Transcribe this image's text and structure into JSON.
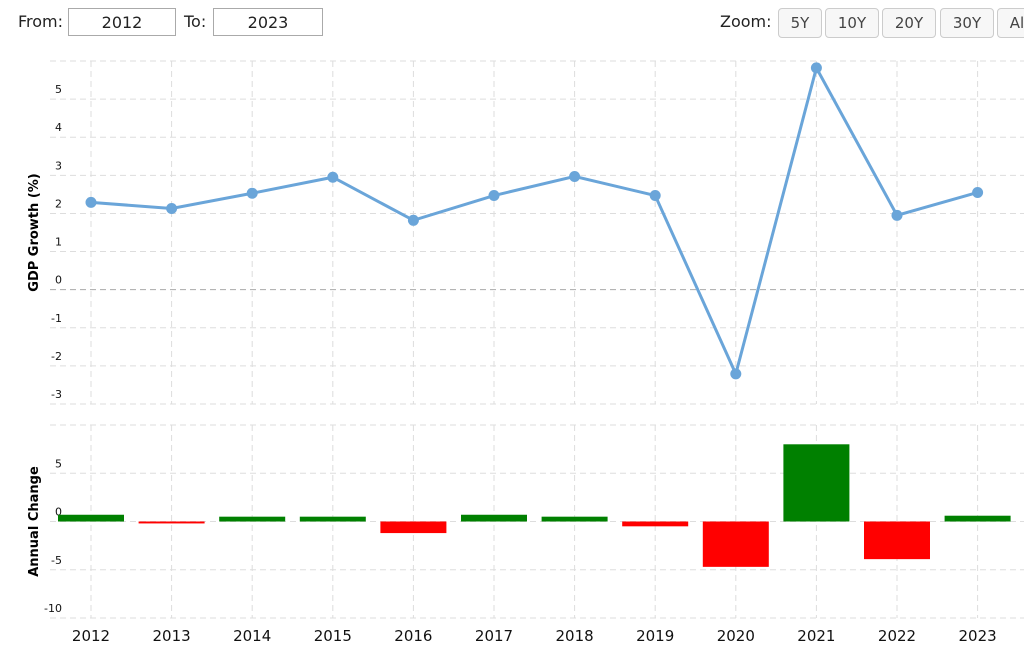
{
  "controls": {
    "from_label": "From:",
    "from_value": "2012",
    "to_label": "To:",
    "to_value": "2023",
    "zoom_label": "Zoom:",
    "zoom_buttons": [
      "5Y",
      "10Y",
      "20Y",
      "30Y",
      "Al"
    ]
  },
  "chart_data": [
    {
      "type": "line",
      "y_label": "GDP Growth (%)",
      "color": "#6aa5d9",
      "values": [
        2.29,
        2.13,
        2.53,
        2.95,
        1.82,
        2.47,
        2.97,
        2.47,
        -2.21,
        5.82,
        1.95,
        2.55
      ],
      "ylim": [
        -3,
        6
      ],
      "yticks": [
        -3,
        -2,
        -1,
        0,
        1,
        2,
        3,
        4,
        5
      ],
      "grid": true
    },
    {
      "type": "bar",
      "y_label": "Annual Change",
      "categories": [
        "2012",
        "2013",
        "2014",
        "2015",
        "2016",
        "2017",
        "2018",
        "2019",
        "2020",
        "2021",
        "2022",
        "2023"
      ],
      "values": [
        0.7,
        -0.2,
        0.5,
        0.5,
        -1.2,
        0.7,
        0.5,
        -0.5,
        -4.7,
        8.0,
        -3.9,
        0.6
      ],
      "positive_color": "#008000",
      "negative_color": "#ff0000",
      "ylim": [
        -10,
        10
      ],
      "yticks": [
        -10,
        -5,
        0,
        5
      ],
      "grid": true
    }
  ]
}
